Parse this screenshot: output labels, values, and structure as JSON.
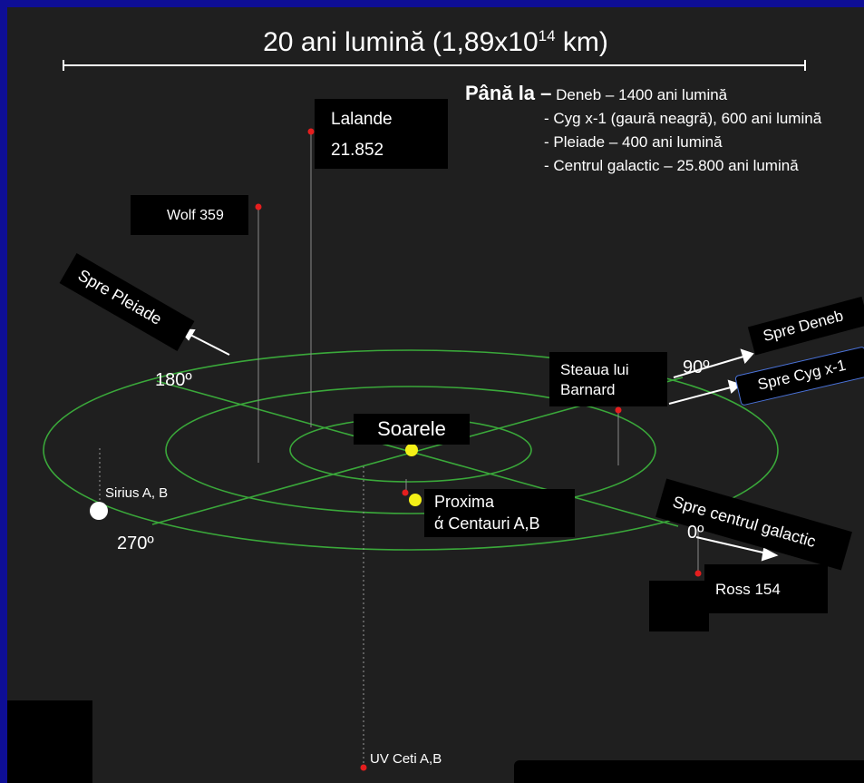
{
  "scale": {
    "prefix": "20 ani lumină (1,89x10",
    "exp": "14",
    "suffix": " km)"
  },
  "info": {
    "lead": "Până la –",
    "line1": " Deneb – 1400 ani lumină",
    "line2": "- Cyg x-1 (gaură neagră), 600 ani lumină",
    "line3": "- Pleiade – 400 ani lumină",
    "line4": "- Centrul galactic – 25.800 ani lumină"
  },
  "stars": {
    "lalande_name": "Lalande",
    "lalande_num": "21.852",
    "wolf": "Wolf 359",
    "barnard_1": "Steaua lui",
    "barnard_2": "Barnard",
    "soarele": "Soarele",
    "proxima_1": "Proxima",
    "proxima_2": "ά Centauri A,B",
    "sirius": "Sirius A, B",
    "ross": "Ross 154",
    "uvceti": "UV Ceti A,B"
  },
  "angles": {
    "a180": "180º",
    "a90": "90º",
    "a270": "270º",
    "a0": "0º"
  },
  "directions": {
    "pleiade": "Spre Pleiade",
    "deneb": "Spre Deneb",
    "cyg": "Spre Cyg x-1",
    "galactic": "Spre centrul galactic"
  },
  "colors": {
    "background": "#1f1f1f",
    "border": "#0e0e95",
    "grid": "#3aa83a",
    "star_red": "#e51e1e",
    "sun_yellow": "#f4f017"
  }
}
